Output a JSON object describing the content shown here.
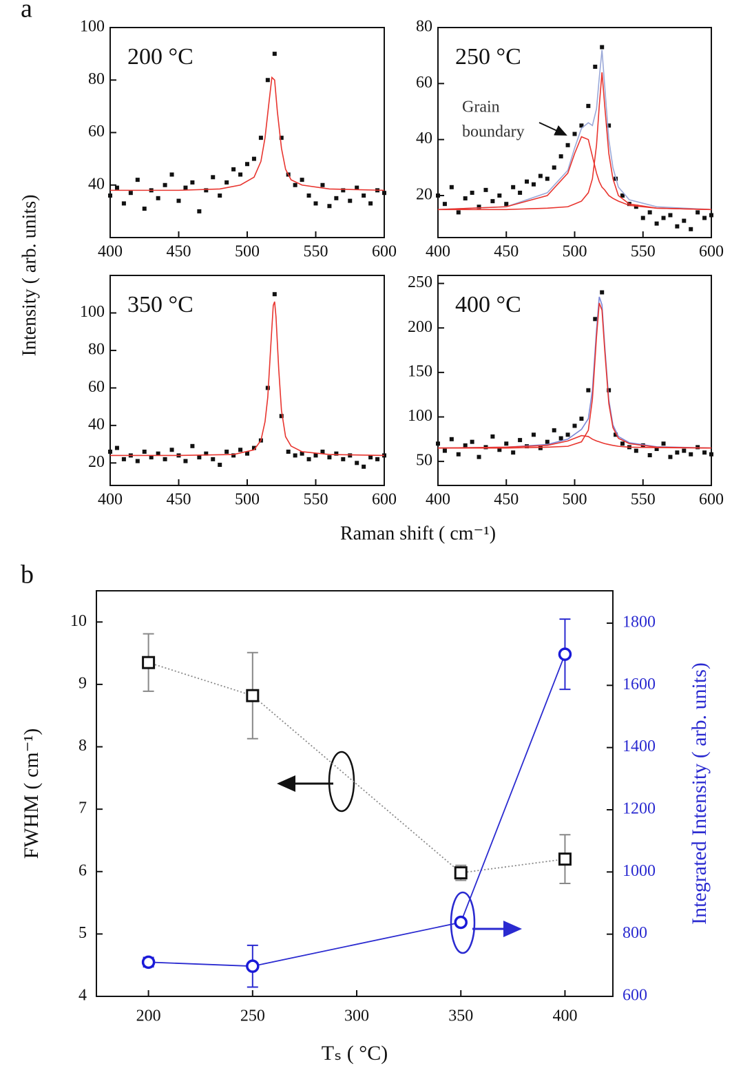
{
  "figure": {
    "label_a": "a",
    "label_b": "b",
    "y_label": "Intensity ( arb. units)",
    "x_label": "Raman shift ( cm⁻¹)"
  },
  "chart_data": [
    {
      "type": "scatter",
      "annotation": "200 °C",
      "xlim": [
        400,
        600
      ],
      "xticks": [
        400,
        450,
        500,
        550,
        600
      ],
      "ylim": [
        20,
        100
      ],
      "yticks": [
        40,
        60,
        80,
        100
      ],
      "x": [
        400,
        405,
        410,
        415,
        420,
        425,
        430,
        435,
        440,
        445,
        450,
        455,
        460,
        465,
        470,
        475,
        480,
        485,
        490,
        495,
        500,
        505,
        510,
        515,
        520,
        525,
        530,
        535,
        540,
        545,
        550,
        555,
        560,
        565,
        570,
        575,
        580,
        585,
        590,
        595,
        600
      ],
      "series": [
        {
          "mode": "markers",
          "color": "#111111",
          "values": [
            36,
            39,
            33,
            37,
            42,
            31,
            38,
            35,
            40,
            44,
            34,
            39,
            41,
            30,
            38,
            43,
            36,
            41,
            46,
            44,
            48,
            50,
            58,
            80,
            90,
            58,
            44,
            40,
            42,
            36,
            33,
            40,
            32,
            35,
            38,
            34,
            39,
            36,
            33,
            38,
            37
          ]
        },
        {
          "mode": "line",
          "color": "#e8342e",
          "x": [
            400,
            450,
            480,
            495,
            505,
            510,
            513,
            516,
            518,
            520,
            522,
            525,
            528,
            532,
            540,
            560,
            600
          ],
          "values": [
            38,
            38,
            38.5,
            40,
            43,
            49,
            58,
            72,
            81,
            80,
            68,
            54,
            46,
            42,
            40,
            38.5,
            38
          ]
        }
      ]
    },
    {
      "type": "scatter",
      "annotation": "250 °C",
      "note": [
        "Grain",
        "boundary"
      ],
      "xlim": [
        400,
        600
      ],
      "xticks": [
        400,
        450,
        500,
        550,
        600
      ],
      "ylim": [
        5,
        80
      ],
      "yticks": [
        20,
        40,
        60,
        80
      ],
      "x": [
        400,
        405,
        410,
        415,
        420,
        425,
        430,
        435,
        440,
        445,
        450,
        455,
        460,
        465,
        470,
        475,
        480,
        485,
        490,
        495,
        500,
        505,
        510,
        515,
        520,
        525,
        530,
        535,
        540,
        545,
        550,
        555,
        560,
        565,
        570,
        575,
        580,
        585,
        590,
        595,
        600
      ],
      "series": [
        {
          "mode": "markers",
          "color": "#111111",
          "values": [
            20,
            17,
            23,
            14,
            19,
            21,
            16,
            22,
            18,
            20,
            17,
            23,
            21,
            25,
            24,
            27,
            26,
            30,
            34,
            38,
            42,
            45,
            52,
            66,
            73,
            45,
            26,
            20,
            17,
            16,
            12,
            14,
            10,
            12,
            13,
            9,
            11,
            8,
            14,
            12,
            13
          ]
        },
        {
          "mode": "line",
          "color": "#9aa8d8",
          "x": [
            400,
            450,
            480,
            495,
            500,
            505,
            510,
            513,
            516,
            518,
            520,
            522,
            525,
            528,
            532,
            540,
            560,
            600
          ],
          "values": [
            15,
            16,
            21,
            29,
            37,
            44,
            46,
            45,
            51,
            62,
            72,
            59,
            40,
            30,
            23,
            18.5,
            16,
            15
          ]
        },
        {
          "mode": "line",
          "color": "#e8342e",
          "x": [
            400,
            450,
            480,
            495,
            500,
            505,
            510,
            513,
            516,
            518,
            520,
            522,
            525,
            528,
            532,
            540,
            560,
            600
          ],
          "values": [
            15,
            15,
            15.5,
            16,
            17,
            18,
            21,
            26,
            38,
            52,
            64,
            52,
            35,
            26,
            20,
            17,
            15.5,
            15
          ]
        },
        {
          "mode": "line",
          "color": "#e8342e",
          "x": [
            400,
            450,
            480,
            495,
            500,
            505,
            510,
            513,
            516,
            518,
            520,
            522,
            525,
            528,
            532,
            540,
            560,
            600
          ],
          "values": [
            15,
            16,
            20,
            28,
            35,
            41,
            40,
            34,
            28,
            25,
            23,
            22,
            20,
            19,
            18,
            16.5,
            15.5,
            15
          ]
        }
      ]
    },
    {
      "type": "scatter",
      "annotation": "350 °C",
      "xlim": [
        400,
        600
      ],
      "xticks": [
        400,
        450,
        500,
        550,
        600
      ],
      "ylim": [
        8,
        120
      ],
      "yticks": [
        20,
        40,
        60,
        80,
        100
      ],
      "x": [
        400,
        405,
        410,
        415,
        420,
        425,
        430,
        435,
        440,
        445,
        450,
        455,
        460,
        465,
        470,
        475,
        480,
        485,
        490,
        495,
        500,
        505,
        510,
        515,
        520,
        525,
        530,
        535,
        540,
        545,
        550,
        555,
        560,
        565,
        570,
        575,
        580,
        585,
        590,
        595,
        600
      ],
      "series": [
        {
          "mode": "markers",
          "color": "#111111",
          "values": [
            26,
            28,
            22,
            24,
            21,
            26,
            23,
            25,
            22,
            27,
            24,
            21,
            29,
            23,
            25,
            22,
            19,
            26,
            24,
            27,
            25,
            28,
            32,
            60,
            110,
            45,
            26,
            24,
            25,
            22,
            24,
            26,
            23,
            25,
            22,
            24,
            20,
            18,
            23,
            22,
            24
          ]
        },
        {
          "mode": "line",
          "color": "#e8342e",
          "x": [
            400,
            450,
            490,
            505,
            510,
            513,
            515,
            517,
            519,
            520,
            521,
            523,
            525,
            528,
            532,
            540,
            560,
            600
          ],
          "values": [
            24,
            24,
            24.5,
            27,
            32,
            42,
            55,
            80,
            104,
            106,
            98,
            70,
            48,
            34,
            29,
            26,
            24.5,
            24
          ]
        }
      ]
    },
    {
      "type": "scatter",
      "annotation": "400 °C",
      "xlim": [
        400,
        600
      ],
      "xticks": [
        400,
        450,
        500,
        550,
        600
      ],
      "ylim": [
        23,
        259
      ],
      "yticks": [
        50,
        100,
        150,
        200,
        250
      ],
      "x": [
        400,
        405,
        410,
        415,
        420,
        425,
        430,
        435,
        440,
        445,
        450,
        455,
        460,
        465,
        470,
        475,
        480,
        485,
        490,
        495,
        500,
        505,
        510,
        515,
        520,
        525,
        530,
        535,
        540,
        545,
        550,
        555,
        560,
        565,
        570,
        575,
        580,
        585,
        590,
        595,
        600
      ],
      "series": [
        {
          "mode": "markers",
          "color": "#111111",
          "values": [
            70,
            62,
            75,
            58,
            68,
            72,
            55,
            66,
            78,
            63,
            70,
            60,
            74,
            67,
            80,
            65,
            72,
            85,
            76,
            80,
            90,
            98,
            130,
            210,
            240,
            130,
            80,
            70,
            66,
            62,
            68,
            57,
            64,
            70,
            55,
            60,
            62,
            58,
            66,
            60,
            58
          ]
        },
        {
          "mode": "line",
          "color": "#7b86d6",
          "x": [
            400,
            450,
            480,
            495,
            505,
            510,
            513,
            516,
            518,
            520,
            522,
            525,
            528,
            532,
            540,
            560,
            600
          ],
          "values": [
            65,
            66,
            69,
            75,
            86,
            98,
            130,
            198,
            235,
            226,
            180,
            119,
            91,
            78,
            71,
            66.5,
            65
          ]
        },
        {
          "mode": "line",
          "color": "#e8342e",
          "x": [
            400,
            450,
            480,
            495,
            505,
            510,
            513,
            516,
            518,
            520,
            522,
            525,
            528,
            532,
            540,
            560,
            600
          ],
          "values": [
            65,
            65,
            66,
            67,
            72,
            85,
            120,
            190,
            228,
            220,
            175,
            115,
            88,
            76,
            70,
            66,
            65
          ]
        },
        {
          "mode": "line",
          "color": "#e8342e",
          "x": [
            400,
            450,
            480,
            495,
            505,
            510,
            513,
            516,
            518,
            520,
            522,
            525,
            528,
            532,
            540,
            560,
            600
          ],
          "values": [
            65,
            66,
            68,
            73,
            79,
            78,
            75,
            73,
            72,
            71,
            70,
            69,
            68,
            67,
            66,
            65.5,
            65
          ]
        }
      ]
    },
    {
      "type": "line",
      "x_label": "Tₛ ( °C)",
      "y_label": "FWHM ( cm⁻¹)",
      "y2_label": "Integrated Intensity ( arb. units)",
      "y2_color": "#2a2ad0",
      "xlim": [
        175,
        423
      ],
      "xticks": [
        200,
        250,
        300,
        350,
        400
      ],
      "ylim": [
        4,
        10.5
      ],
      "yticks": [
        4,
        5,
        6,
        7,
        8,
        9,
        10
      ],
      "y2lim": [
        600,
        1904
      ],
      "y2ticks": [
        600,
        800,
        1000,
        1200,
        1400,
        1600,
        1800
      ],
      "x": [
        200,
        250,
        350,
        400
      ],
      "series": [
        {
          "marker": "square",
          "line": "dotted",
          "color": "#111111",
          "line_color": "#888888",
          "values": [
            9.35,
            8.82,
            5.98,
            6.2
          ],
          "errors": [
            0.46,
            0.69,
            0.12,
            0.39
          ]
        },
        {
          "marker": "circle",
          "line": "solid",
          "axis": "y2",
          "color": "#1a1ad8",
          "line_color": "#2a2ad0",
          "values": [
            710,
            697,
            838,
            1700
          ],
          "errors": [
            15,
            67,
            0,
            113
          ]
        }
      ]
    }
  ]
}
